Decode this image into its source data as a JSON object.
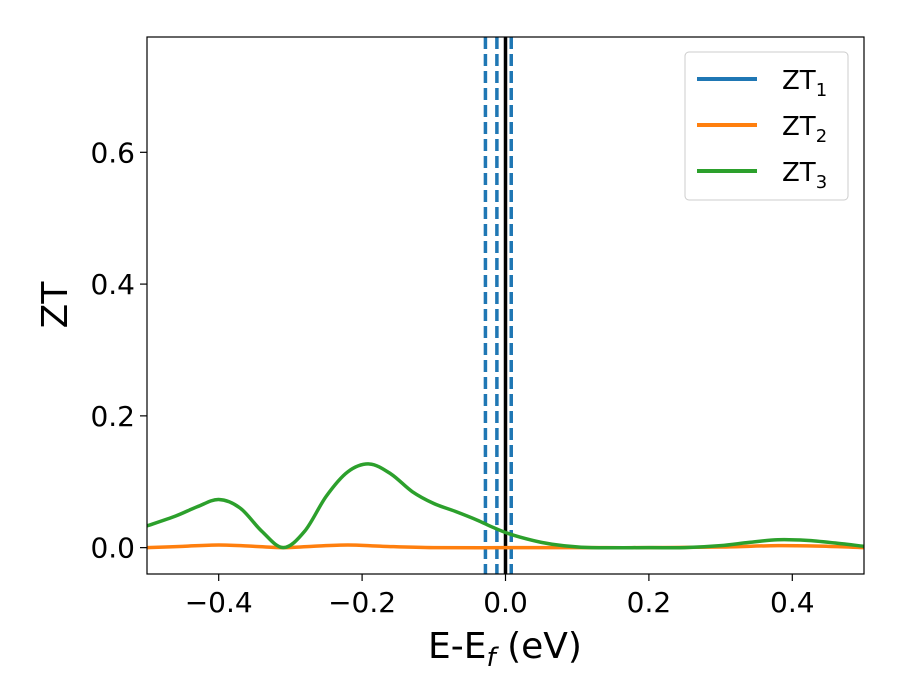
{
  "chart_data": {
    "type": "line",
    "xlabel": "E-E",
    "xlabel_sub": "f",
    "xlabel_unit": " (eV)",
    "ylabel": "ZT",
    "xlim": [
      -0.5,
      0.5
    ],
    "ylim": [
      -0.04,
      0.775
    ],
    "xticks": [
      -0.4,
      -0.2,
      0.0,
      0.2,
      0.4
    ],
    "xtick_labels": [
      "−0.4",
      "−0.2",
      "0.0",
      "0.2",
      "0.4"
    ],
    "yticks": [
      0.0,
      0.2,
      0.4,
      0.6
    ],
    "ytick_labels": [
      "0.0",
      "0.2",
      "0.4",
      "0.6"
    ],
    "grid": false,
    "legend_position": "top-right",
    "series": [
      {
        "name": "ZT",
        "sub": "1",
        "color": "#1f77b4",
        "x": [],
        "y": []
      },
      {
        "name": "ZT",
        "sub": "2",
        "color": "#ff7f0e",
        "x": [
          -0.5,
          -0.45,
          -0.4,
          -0.35,
          -0.31,
          -0.27,
          -0.22,
          -0.17,
          -0.1,
          0.0,
          0.1,
          0.2,
          0.3,
          0.38,
          0.45,
          0.5
        ],
        "y": [
          0.0,
          0.002,
          0.004,
          0.002,
          0.0,
          0.002,
          0.004,
          0.002,
          0.0,
          0.0,
          0.0,
          0.0,
          0.001,
          0.003,
          0.002,
          0.0
        ]
      },
      {
        "name": "ZT",
        "sub": "3",
        "color": "#2ca02c",
        "x": [
          -0.5,
          -0.46,
          -0.43,
          -0.4,
          -0.37,
          -0.34,
          -0.31,
          -0.28,
          -0.25,
          -0.22,
          -0.19,
          -0.16,
          -0.13,
          -0.1,
          -0.07,
          -0.04,
          -0.02,
          0.0,
          0.02,
          0.05,
          0.08,
          0.12,
          0.2,
          0.25,
          0.3,
          0.34,
          0.38,
          0.42,
          0.46,
          0.5
        ],
        "y": [
          0.033,
          0.048,
          0.062,
          0.073,
          0.06,
          0.025,
          0.0,
          0.025,
          0.078,
          0.115,
          0.127,
          0.112,
          0.085,
          0.067,
          0.055,
          0.042,
          0.032,
          0.023,
          0.016,
          0.008,
          0.003,
          0.0,
          0.0,
          0.0,
          0.003,
          0.008,
          0.012,
          0.011,
          0.007,
          0.002
        ]
      }
    ],
    "vlines": [
      {
        "x": -0.028,
        "style": "dashed",
        "color": "#1f77b4"
      },
      {
        "x": -0.012,
        "style": "dashed",
        "color": "#1f77b4"
      },
      {
        "x": 0.008,
        "style": "dashed",
        "color": "#1f77b4"
      },
      {
        "x": 0.0,
        "style": "solid",
        "color": "#000000"
      }
    ]
  }
}
